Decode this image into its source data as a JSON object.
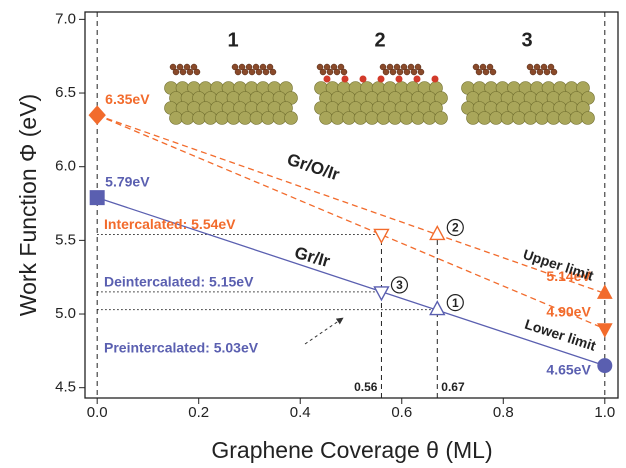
{
  "chart_data": {
    "type": "line",
    "panels": [
      "1",
      "2",
      "3"
    ],
    "xlabel": "Graphene Coverage θ (ML)",
    "ylabel": "Work Function Φ (eV)",
    "xlim": [
      -0.024,
      1.026
    ],
    "ylim": [
      4.43,
      7.05
    ],
    "xticks": [
      {
        "value": 0,
        "label": "0.0"
      },
      0.2,
      0.4,
      0.6,
      0.8,
      {
        "value": 1,
        "label": "1.0"
      }
    ],
    "yticks": [
      4.5,
      {
        "value": 5,
        "label": "5.0"
      },
      5.5,
      {
        "value": 6,
        "label": "6.0"
      },
      6.5,
      {
        "value": 7,
        "label": "7.0"
      }
    ],
    "group_label": "Gr/O/Ir",
    "series": [
      {
        "name": "Gr/Ir",
        "color": "#5a5fb0",
        "dashed": false,
        "x": [
          0,
          1
        ],
        "values": [
          5.79,
          4.65
        ],
        "markers": [
          "square",
          "circle"
        ],
        "value_labels": [
          "5.79eV",
          "4.65eV"
        ]
      },
      {
        "name": "Upper limit",
        "color": "#f26b2c",
        "dashed": true,
        "x": [
          0,
          1
        ],
        "values": [
          6.35,
          5.14
        ],
        "markers": [
          "diamond",
          "triangle-up"
        ],
        "value_labels": [
          "6.35eV",
          "5.14eV"
        ]
      },
      {
        "name": "Lower limit",
        "color": "#f26b2c",
        "dashed": true,
        "x": [
          0,
          1
        ],
        "values": [
          6.35,
          4.9
        ],
        "markers": [
          null,
          "triangle-down"
        ],
        "value_labels": [
          null,
          "4.90eV"
        ]
      }
    ],
    "points": [
      {
        "x": 0.56,
        "value": 5.54,
        "marker": "triangle-down",
        "color": "#f26b2c",
        "label": "Intercalated: 5.54eV"
      },
      {
        "x": 0.67,
        "value": 5.54,
        "marker": "triangle-up",
        "color": "#f26b2c",
        "tag": "2"
      },
      {
        "x": 0.56,
        "value": 5.15,
        "marker": "triangle-down",
        "color": "#5a5fb0",
        "label": "Deintercalated: 5.15eV",
        "tag": "3"
      },
      {
        "x": 0.67,
        "value": 5.03,
        "marker": "triangle-up",
        "color": "#5a5fb0",
        "label": "Preintercalated: 5.03eV",
        "tag": "1"
      }
    ],
    "coverage_marks": [
      0.56,
      0.67
    ]
  }
}
